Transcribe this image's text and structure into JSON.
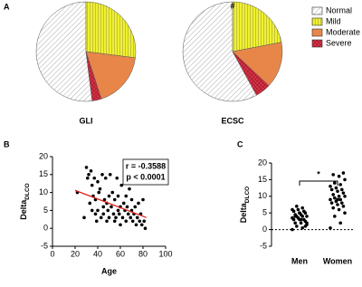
{
  "chart_data": [
    {
      "type": "pie",
      "panel": "A",
      "categories": [
        "Normal",
        "Mild",
        "Moderate",
        "Severe"
      ],
      "colors": [
        "#ffffff",
        "#f0f030",
        "#e8864a",
        "#d8334a"
      ],
      "hatch": [
        "diagonal",
        "vertical",
        "none",
        "cross"
      ],
      "pies": [
        {
          "title": "GLI",
          "values": [
            52,
            27,
            18,
            3
          ]
        },
        {
          "title": "ECSC",
          "annotation": "#",
          "values": [
            58,
            22,
            15,
            5
          ]
        }
      ]
    },
    {
      "type": "scatter",
      "panel": "B",
      "x_label": "Age",
      "y_label": "Delta",
      "y_label_sub": "DLCO",
      "annotations": [
        "r = -0.3588",
        "p < 0.0001"
      ],
      "x": [
        22,
        28,
        30,
        31,
        32,
        33,
        34,
        35,
        35,
        36,
        37,
        38,
        38,
        39,
        40,
        40,
        41,
        42,
        43,
        44,
        45,
        45,
        46,
        47,
        48,
        48,
        49,
        50,
        50,
        51,
        52,
        53,
        54,
        55,
        55,
        56,
        57,
        58,
        58,
        59,
        60,
        60,
        61,
        62,
        63,
        64,
        65,
        65,
        66,
        67,
        68,
        69,
        70,
        70,
        71,
        72,
        73,
        74,
        75,
        76,
        77,
        78,
        79,
        80,
        81,
        82
      ],
      "y": [
        10,
        3,
        17,
        14,
        15,
        7,
        16,
        5,
        12,
        9,
        14,
        4,
        8,
        2,
        13,
        5,
        10,
        11,
        3,
        15,
        6,
        4,
        8,
        14,
        2,
        7,
        5,
        9,
        3,
        15,
        6,
        10,
        4,
        2,
        8,
        3,
        14,
        5,
        9,
        4,
        1,
        6,
        12,
        3,
        7,
        5,
        2,
        9,
        6,
        4,
        11,
        3,
        5,
        8,
        2,
        4,
        6,
        1,
        3,
        7,
        2,
        4,
        1,
        8,
        2,
        0
      ],
      "color": "#000000",
      "fit_line": {
        "x": [
          20,
          83
        ],
        "y": [
          10.6,
          3.0
        ],
        "color": "#e02020"
      },
      "xlim": [
        0,
        100
      ],
      "xticks": [
        0,
        20,
        40,
        60,
        80,
        100
      ],
      "ylim": [
        -5,
        20
      ],
      "yticks": [
        -5,
        0,
        5,
        10,
        15,
        20
      ]
    },
    {
      "type": "strip",
      "panel": "C",
      "y_label": "Delta",
      "y_label_sub": "DLCO",
      "significance": "*",
      "groups": [
        {
          "name": "Men",
          "values": [
            0,
            0.5,
            1,
            1.5,
            2,
            2,
            2.5,
            3,
            3,
            3,
            3.5,
            3.5,
            4,
            4,
            4,
            4.5,
            4.5,
            5,
            5,
            5.5,
            5.5,
            6,
            6,
            6.5,
            7,
            2,
            3,
            4,
            1,
            5
          ]
        },
        {
          "name": "Women",
          "values": [
            0.5,
            2,
            4,
            5,
            6,
            6.5,
            7,
            7.5,
            8,
            8,
            8.5,
            9,
            9,
            9.5,
            10,
            10,
            10.5,
            11,
            11.5,
            12,
            12,
            12.5,
            13,
            13.5,
            14,
            15,
            16,
            16.5,
            17,
            9
          ]
        }
      ],
      "color": "#000000",
      "reference_line": 0,
      "ylim": [
        -5,
        20
      ],
      "yticks": [
        -5,
        0,
        5,
        10,
        15,
        20
      ]
    }
  ]
}
